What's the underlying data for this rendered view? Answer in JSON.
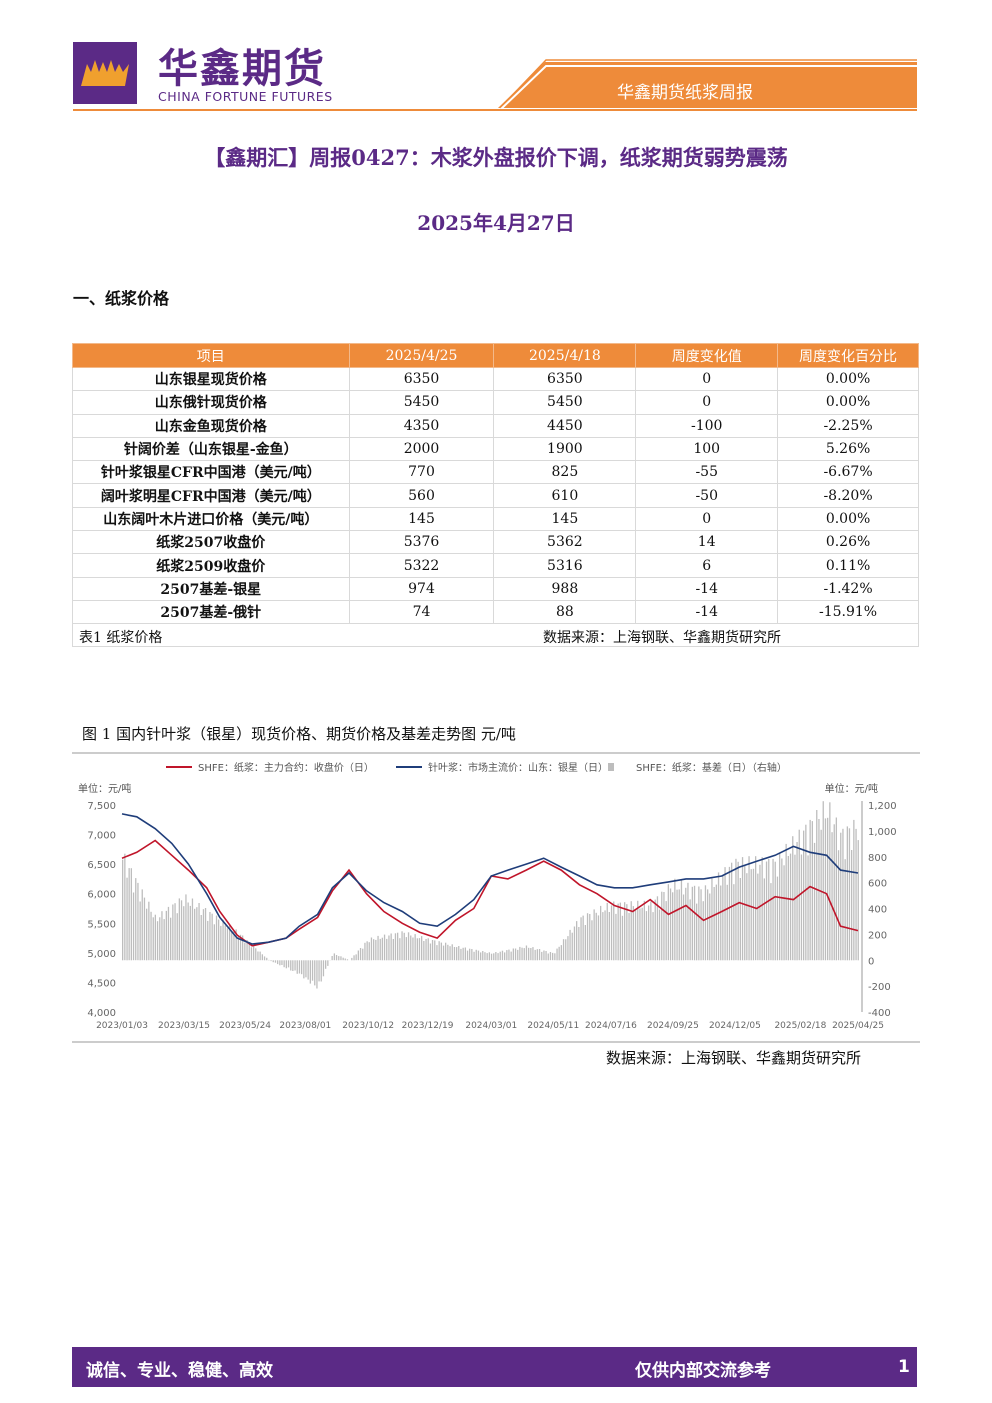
{
  "header": {
    "logo_cn": "华鑫期货",
    "logo_en": "CHINA FORTUNE FUTURES",
    "report_name": "华鑫期货纸浆周报"
  },
  "title": "【鑫期汇】周报0427：木浆外盘报价下调，纸浆期货弱势震荡",
  "date": "2025年4月27日",
  "section1": "一、纸浆价格",
  "table": {
    "headers": [
      "项目",
      "2025/4/25",
      "2025/4/18",
      "周度变化值",
      "周度变化百分比"
    ],
    "rows": [
      [
        "山东银星现货价格",
        "6350",
        "6350",
        "0",
        "0.00%"
      ],
      [
        "山东俄针现货价格",
        "5450",
        "5450",
        "0",
        "0.00%"
      ],
      [
        "山东金鱼现货价格",
        "4350",
        "4450",
        "-100",
        "-2.25%"
      ],
      [
        "针阔价差（山东银星-金鱼）",
        "2000",
        "1900",
        "100",
        "5.26%"
      ],
      [
        "针叶浆银星CFR中国港（美元/吨）",
        "770",
        "825",
        "-55",
        "-6.67%"
      ],
      [
        "阔叶浆明星CFR中国港（美元/吨）",
        "560",
        "610",
        "-50",
        "-8.20%"
      ],
      [
        "山东阔叶木片进口价格（美元/吨）",
        "145",
        "145",
        "0",
        "0.00%"
      ],
      [
        "纸浆2507收盘价",
        "5376",
        "5362",
        "14",
        "0.26%"
      ],
      [
        "纸浆2509收盘价",
        "5322",
        "5316",
        "6",
        "0.11%"
      ],
      [
        "2507基差-银星",
        "974",
        "988",
        "-14",
        "-1.42%"
      ],
      [
        "2507基差-俄针",
        "74",
        "88",
        "-14",
        "-15.91%"
      ]
    ],
    "caption": "表1 纸浆价格",
    "source": "数据来源：上海钢联、华鑫期货研究所"
  },
  "figure": {
    "title": "图 1 国内针叶浆（银星）现货价格、期货价格及基差走势图 元/吨",
    "source": "数据来源：上海钢联、华鑫期货研究所"
  },
  "chart_data": {
    "type": "line",
    "legend_position": "top",
    "left_unit": "单位：元/吨",
    "right_unit": "单位：元/吨",
    "y_left": {
      "min": 4000,
      "max": 7500,
      "ticks": [
        "7,500",
        "7,000",
        "6,500",
        "6,000",
        "5,500",
        "5,000",
        "4,500",
        "4,000"
      ]
    },
    "y_right": {
      "min": -400,
      "max": 1200,
      "ticks": [
        "1,200",
        "1,000",
        "800",
        "600",
        "400",
        "200",
        "0",
        "-200",
        "-400"
      ]
    },
    "x_ticks": [
      "2023/01/03",
      "2023/03/15",
      "2023/05/24",
      "2023/08/01",
      "2023/10/12",
      "2023/12/19",
      "2024/03/01",
      "2024/05/11",
      "2024/07/16",
      "2024/09/25",
      "2024/12/05",
      "2025/02/18",
      "2025/04/25"
    ],
    "series": [
      {
        "name": "SHFE：纸浆：主力合约：收盘价（日）",
        "color": "#c0152a",
        "axis": "left",
        "x": [
          "2023/01/03",
          "2023/01/20",
          "2023/02/10",
          "2023/03/01",
          "2023/03/20",
          "2023/04/10",
          "2023/04/25",
          "2023/05/15",
          "2023/06/01",
          "2023/06/20",
          "2023/07/10",
          "2023/07/25",
          "2023/08/15",
          "2023/09/01",
          "2023/09/20",
          "2023/10/10",
          "2023/10/30",
          "2023/11/20",
          "2023/12/10",
          "2023/12/30",
          "2024/01/20",
          "2024/02/10",
          "2024/03/01",
          "2024/03/20",
          "2024/04/10",
          "2024/04/30",
          "2024/05/20",
          "2024/06/10",
          "2024/06/30",
          "2024/07/20",
          "2024/08/10",
          "2024/08/30",
          "2024/09/20",
          "2024/10/10",
          "2024/10/30",
          "2024/11/20",
          "2024/12/10",
          "2024/12/30",
          "2025/01/20",
          "2025/02/10",
          "2025/03/01",
          "2025/03/20",
          "2025/04/05",
          "2025/04/25"
        ],
        "values": [
          6600,
          6700,
          6900,
          6650,
          6400,
          6100,
          5700,
          5300,
          5120,
          5180,
          5250,
          5400,
          5600,
          6050,
          6400,
          6000,
          5700,
          5500,
          5350,
          5250,
          5550,
          5750,
          6300,
          6250,
          6400,
          6550,
          6400,
          6150,
          6000,
          5800,
          5700,
          5900,
          5650,
          5800,
          5550,
          5700,
          5850,
          5750,
          5950,
          5900,
          6120,
          6000,
          5450,
          5376
        ]
      },
      {
        "name": "针叶浆：市场主流价：山东：银星（日）",
        "color": "#1f3d7a",
        "axis": "left",
        "x": [
          "2023/01/03",
          "2023/01/20",
          "2023/02/10",
          "2023/03/01",
          "2023/03/20",
          "2023/04/10",
          "2023/04/25",
          "2023/05/15",
          "2023/06/01",
          "2023/06/20",
          "2023/07/10",
          "2023/07/25",
          "2023/08/15",
          "2023/09/01",
          "2023/09/20",
          "2023/10/10",
          "2023/10/30",
          "2023/11/20",
          "2023/12/10",
          "2023/12/30",
          "2024/01/20",
          "2024/02/10",
          "2024/03/01",
          "2024/03/20",
          "2024/04/10",
          "2024/04/30",
          "2024/05/20",
          "2024/06/10",
          "2024/06/30",
          "2024/07/20",
          "2024/08/10",
          "2024/08/30",
          "2024/09/20",
          "2024/10/10",
          "2024/10/30",
          "2024/11/20",
          "2024/12/10",
          "2024/12/30",
          "2025/01/20",
          "2025/02/10",
          "2025/03/01",
          "2025/03/20",
          "2025/04/05",
          "2025/04/25"
        ],
        "values": [
          7350,
          7300,
          7100,
          6850,
          6500,
          6000,
          5600,
          5250,
          5150,
          5180,
          5250,
          5450,
          5650,
          6100,
          6350,
          6050,
          5850,
          5700,
          5500,
          5450,
          5650,
          5900,
          6300,
          6400,
          6500,
          6600,
          6450,
          6300,
          6150,
          6100,
          6100,
          6150,
          6200,
          6250,
          6250,
          6300,
          6450,
          6550,
          6650,
          6800,
          6700,
          6650,
          6400,
          6350
        ]
      },
      {
        "name": "SHFE：纸浆：基差（日）（右轴）",
        "color": "#bdbdbd",
        "axis": "right",
        "x": [
          "2023/01/03",
          "2023/02/10",
          "2023/03/15",
          "2023/04/10",
          "2023/05/15",
          "2023/06/20",
          "2023/07/25",
          "2023/08/15",
          "2023/09/01",
          "2023/09/20",
          "2023/10/12",
          "2023/11/20",
          "2023/12/19",
          "2024/01/20",
          "2024/03/01",
          "2024/04/10",
          "2024/05/11",
          "2024/06/10",
          "2024/07/16",
          "2024/08/30",
          "2024/09/25",
          "2024/10/30",
          "2024/12/05",
          "2025/01/20",
          "2025/02/18",
          "2025/03/20",
          "2025/04/05",
          "2025/04/25"
        ],
        "values": [
          750,
          300,
          450,
          350,
          200,
          0,
          -100,
          -200,
          50,
          0,
          150,
          200,
          150,
          100,
          50,
          100,
          50,
          300,
          400,
          400,
          550,
          500,
          700,
          700,
          900,
          1100,
          900,
          974
        ]
      }
    ]
  }
}
